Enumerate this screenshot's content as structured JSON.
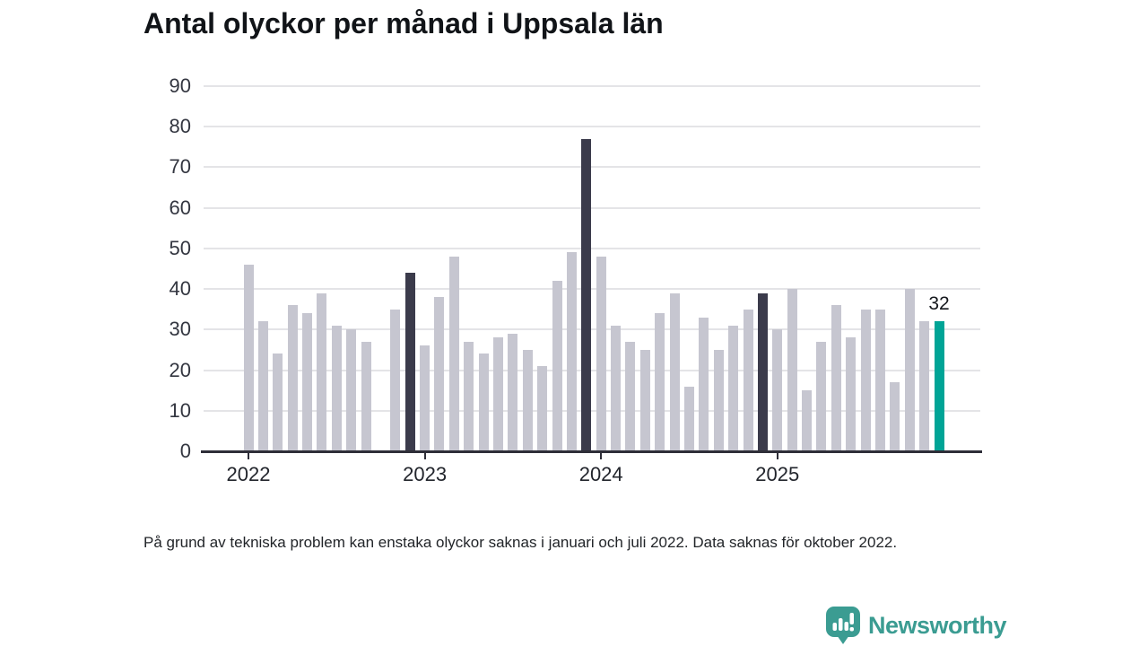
{
  "title": "Antal olyckor per månad i Uppsala län",
  "footnote": "På grund av tekniska problem kan enstaka olyckor saknas i januari och juli 2022. Data saknas för oktober 2022.",
  "logo": {
    "text": "Newsworthy",
    "icon": "newsworthy-speech-bubble-bar-chart-icon",
    "color": "#3b9c92"
  },
  "chart_data": {
    "type": "bar",
    "title": "Antal olyckor per månad i Uppsala län",
    "x": [
      "2022-01",
      "2022-02",
      "2022-03",
      "2022-04",
      "2022-05",
      "2022-06",
      "2022-07",
      "2022-08",
      "2022-09",
      "2022-10",
      "2022-11",
      "2022-12",
      "2023-01",
      "2023-02",
      "2023-03",
      "2023-04",
      "2023-05",
      "2023-06",
      "2023-07",
      "2023-08",
      "2023-09",
      "2023-10",
      "2023-11",
      "2023-12",
      "2024-01",
      "2024-02",
      "2024-03",
      "2024-04",
      "2024-05",
      "2024-06",
      "2024-07",
      "2024-08",
      "2024-09",
      "2024-10",
      "2024-11",
      "2024-12",
      "2025-01",
      "2025-02",
      "2025-03",
      "2025-04",
      "2025-05",
      "2025-06",
      "2025-07",
      "2025-08",
      "2025-09",
      "2025-10",
      "2025-11",
      "2025-12"
    ],
    "values": [
      46,
      32,
      24,
      36,
      34,
      39,
      31,
      30,
      27,
      null,
      35,
      44,
      26,
      38,
      48,
      27,
      24,
      28,
      29,
      25,
      21,
      42,
      49,
      77,
      48,
      31,
      27,
      25,
      34,
      39,
      16,
      33,
      25,
      31,
      35,
      39,
      30,
      40,
      15,
      27,
      36,
      28,
      35,
      35,
      17,
      40,
      32,
      32
    ],
    "missing_months": [
      "2022-10"
    ],
    "ylim": [
      0,
      90
    ],
    "yticks": [
      0,
      10,
      20,
      30,
      40,
      50,
      60,
      70,
      80,
      90
    ],
    "xtick_labels": [
      "2022",
      "2023",
      "2024",
      "2025"
    ],
    "xtick_month_indices": [
      0,
      12,
      24,
      36
    ],
    "annotation": {
      "text": "32",
      "month": "2025-12"
    },
    "colors": {
      "default": "#c6c6d0",
      "december": "#3b3b4b",
      "latest": "#00a496"
    },
    "december_indices": [
      11,
      23,
      35
    ],
    "latest_index": 47,
    "grid": "horizontal",
    "legend_position": "none"
  }
}
